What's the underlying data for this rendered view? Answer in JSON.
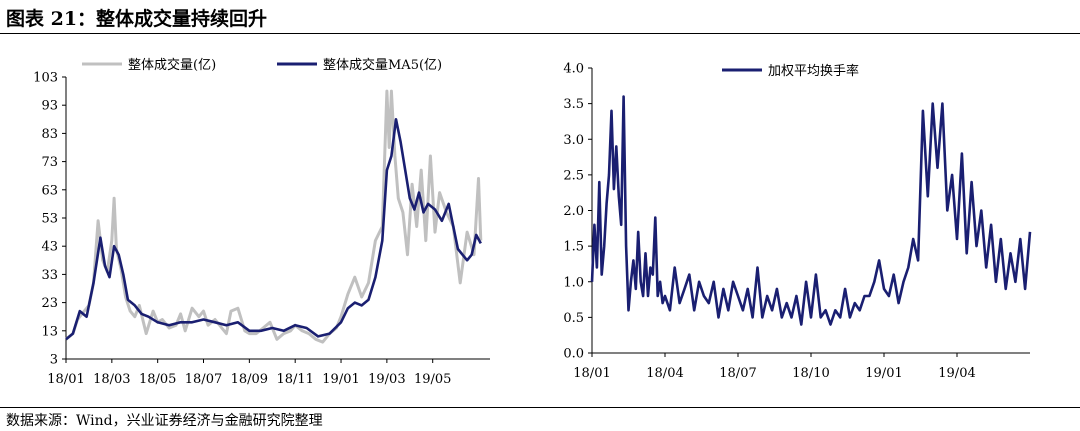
{
  "figure_title": "图表 21：整体成交量持续回升",
  "source": "数据来源：Wind，兴业证券经济与金融研究院整理",
  "chart_data": [
    {
      "type": "line",
      "yticks": [
        3,
        13,
        23,
        33,
        43,
        53,
        63,
        73,
        83,
        93,
        103
      ],
      "ylim": [
        3,
        103
      ],
      "x_tick_labels": [
        "18/01",
        "18/03",
        "18/05",
        "18/07",
        "18/09",
        "18/11",
        "19/01",
        "19/03",
        "19/05"
      ],
      "x_tick_positions": [
        0,
        2,
        4,
        6,
        8,
        10,
        12,
        14,
        16
      ],
      "xlim": [
        0,
        18.5
      ],
      "legend_position": "top",
      "series": [
        {
          "name": "整体成交量(亿)",
          "color": "#c0c0c0",
          "points": [
            [
              0,
              10
            ],
            [
              0.3,
              12
            ],
            [
              0.5,
              17
            ],
            [
              0.8,
              20
            ],
            [
              1,
              22
            ],
            [
              1.2,
              30
            ],
            [
              1.4,
              52
            ],
            [
              1.6,
              38
            ],
            [
              1.8,
              34
            ],
            [
              2,
              45
            ],
            [
              2.1,
              60
            ],
            [
              2.2,
              42
            ],
            [
              2.4,
              35
            ],
            [
              2.6,
              25
            ],
            [
              2.8,
              20
            ],
            [
              3,
              18
            ],
            [
              3.2,
              22
            ],
            [
              3.5,
              12
            ],
            [
              3.8,
              20
            ],
            [
              4,
              16
            ],
            [
              4.2,
              17
            ],
            [
              4.5,
              14
            ],
            [
              4.8,
              15
            ],
            [
              5,
              19
            ],
            [
              5.2,
              13
            ],
            [
              5.5,
              21
            ],
            [
              5.8,
              18
            ],
            [
              6,
              20
            ],
            [
              6.2,
              15
            ],
            [
              6.5,
              17
            ],
            [
              6.8,
              14
            ],
            [
              7,
              12
            ],
            [
              7.2,
              20
            ],
            [
              7.5,
              21
            ],
            [
              7.8,
              13
            ],
            [
              8,
              12
            ],
            [
              8.3,
              12
            ],
            [
              8.6,
              14
            ],
            [
              8.9,
              16
            ],
            [
              9.2,
              10
            ],
            [
              9.5,
              12
            ],
            [
              9.8,
              13
            ],
            [
              10,
              15
            ],
            [
              10.3,
              13
            ],
            [
              10.6,
              12
            ],
            [
              10.9,
              10
            ],
            [
              11.2,
              9
            ],
            [
              11.5,
              12
            ],
            [
              11.8,
              14
            ],
            [
              12,
              18
            ],
            [
              12.3,
              26
            ],
            [
              12.6,
              32
            ],
            [
              12.9,
              25
            ],
            [
              13.2,
              30
            ],
            [
              13.5,
              45
            ],
            [
              13.8,
              50
            ],
            [
              14,
              98
            ],
            [
              14.1,
              78
            ],
            [
              14.2,
              98
            ],
            [
              14.35,
              75
            ],
            [
              14.5,
              60
            ],
            [
              14.7,
              55
            ],
            [
              14.9,
              40
            ],
            [
              15.1,
              65
            ],
            [
              15.3,
              50
            ],
            [
              15.5,
              70
            ],
            [
              15.7,
              45
            ],
            [
              15.9,
              75
            ],
            [
              16.1,
              48
            ],
            [
              16.3,
              62
            ],
            [
              16.6,
              55
            ],
            [
              16.9,
              50
            ],
            [
              17.2,
              30
            ],
            [
              17.5,
              48
            ],
            [
              17.8,
              40
            ],
            [
              18,
              67
            ],
            [
              18.1,
              45
            ]
          ]
        },
        {
          "name": "整体成交量MA5(亿)",
          "color": "#1a1f71",
          "points": [
            [
              0,
              10
            ],
            [
              0.3,
              12
            ],
            [
              0.6,
              20
            ],
            [
              0.9,
              18
            ],
            [
              1.2,
              30
            ],
            [
              1.5,
              46
            ],
            [
              1.7,
              36
            ],
            [
              1.9,
              32
            ],
            [
              2.1,
              43
            ],
            [
              2.3,
              40
            ],
            [
              2.5,
              33
            ],
            [
              2.7,
              24
            ],
            [
              3,
              22
            ],
            [
              3.3,
              19
            ],
            [
              3.6,
              18
            ],
            [
              4,
              16
            ],
            [
              4.5,
              15
            ],
            [
              5,
              16
            ],
            [
              5.5,
              16
            ],
            [
              6,
              17
            ],
            [
              6.5,
              16
            ],
            [
              7,
              15
            ],
            [
              7.5,
              16
            ],
            [
              8,
              13
            ],
            [
              8.5,
              13
            ],
            [
              9,
              14
            ],
            [
              9.5,
              13
            ],
            [
              10,
              15
            ],
            [
              10.5,
              14
            ],
            [
              11,
              11
            ],
            [
              11.5,
              12
            ],
            [
              12,
              16
            ],
            [
              12.3,
              21
            ],
            [
              12.6,
              23
            ],
            [
              12.9,
              22
            ],
            [
              13.2,
              24
            ],
            [
              13.5,
              32
            ],
            [
              13.8,
              45
            ],
            [
              14,
              70
            ],
            [
              14.2,
              75
            ],
            [
              14.4,
              88
            ],
            [
              14.6,
              80
            ],
            [
              14.8,
              70
            ],
            [
              15,
              60
            ],
            [
              15.2,
              56
            ],
            [
              15.4,
              62
            ],
            [
              15.6,
              55
            ],
            [
              15.8,
              58
            ],
            [
              16.1,
              56
            ],
            [
              16.4,
              52
            ],
            [
              16.7,
              58
            ],
            [
              16.9,
              50
            ],
            [
              17.1,
              42
            ],
            [
              17.3,
              40
            ],
            [
              17.5,
              38
            ],
            [
              17.7,
              40
            ],
            [
              17.9,
              47
            ],
            [
              18.1,
              44
            ]
          ]
        }
      ]
    },
    {
      "type": "line",
      "yticks": [
        0.0,
        0.5,
        1.0,
        1.5,
        2.0,
        2.5,
        3.0,
        3.5,
        4.0
      ],
      "ytick_labels": [
        "0.0",
        "0.5",
        "1.0",
        "1.5",
        "2.0",
        "2.5",
        "3.0",
        "3.5",
        "4.0"
      ],
      "ylim": [
        0,
        4
      ],
      "x_tick_labels": [
        "18/01",
        "18/04",
        "18/07",
        "18/10",
        "19/01",
        "19/04"
      ],
      "x_tick_positions": [
        0,
        3,
        6,
        9,
        12,
        15
      ],
      "xlim": [
        0,
        18
      ],
      "legend_position": "top",
      "series": [
        {
          "name": "加权平均换手率",
          "color": "#1a1f71",
          "points": [
            [
              0,
              1.0
            ],
            [
              0.1,
              1.8
            ],
            [
              0.2,
              1.2
            ],
            [
              0.3,
              2.4
            ],
            [
              0.4,
              1.1
            ],
            [
              0.5,
              1.5
            ],
            [
              0.6,
              2.1
            ],
            [
              0.7,
              2.5
            ],
            [
              0.8,
              3.4
            ],
            [
              0.9,
              2.3
            ],
            [
              1.0,
              2.9
            ],
            [
              1.1,
              2.2
            ],
            [
              1.2,
              1.8
            ],
            [
              1.3,
              3.6
            ],
            [
              1.4,
              1.5
            ],
            [
              1.5,
              0.6
            ],
            [
              1.6,
              1.0
            ],
            [
              1.7,
              1.3
            ],
            [
              1.8,
              0.9
            ],
            [
              1.9,
              1.7
            ],
            [
              2.0,
              1.0
            ],
            [
              2.1,
              0.8
            ],
            [
              2.2,
              1.4
            ],
            [
              2.3,
              0.8
            ],
            [
              2.4,
              1.2
            ],
            [
              2.5,
              1.1
            ],
            [
              2.6,
              1.9
            ],
            [
              2.7,
              0.8
            ],
            [
              2.8,
              1.0
            ],
            [
              2.9,
              0.7
            ],
            [
              3.0,
              0.8
            ],
            [
              3.2,
              0.6
            ],
            [
              3.4,
              1.2
            ],
            [
              3.6,
              0.7
            ],
            [
              3.8,
              0.9
            ],
            [
              4.0,
              1.1
            ],
            [
              4.2,
              0.6
            ],
            [
              4.4,
              1.0
            ],
            [
              4.6,
              0.8
            ],
            [
              4.8,
              0.7
            ],
            [
              5.0,
              1.0
            ],
            [
              5.2,
              0.5
            ],
            [
              5.4,
              0.9
            ],
            [
              5.6,
              0.6
            ],
            [
              5.8,
              1.0
            ],
            [
              6.0,
              0.8
            ],
            [
              6.2,
              0.6
            ],
            [
              6.4,
              0.9
            ],
            [
              6.6,
              0.5
            ],
            [
              6.8,
              1.2
            ],
            [
              7.0,
              0.5
            ],
            [
              7.2,
              0.8
            ],
            [
              7.4,
              0.6
            ],
            [
              7.6,
              0.9
            ],
            [
              7.8,
              0.5
            ],
            [
              8.0,
              0.7
            ],
            [
              8.2,
              0.5
            ],
            [
              8.4,
              0.8
            ],
            [
              8.6,
              0.4
            ],
            [
              8.8,
              1.0
            ],
            [
              9.0,
              0.5
            ],
            [
              9.2,
              1.1
            ],
            [
              9.4,
              0.5
            ],
            [
              9.6,
              0.6
            ],
            [
              9.8,
              0.4
            ],
            [
              10.0,
              0.6
            ],
            [
              10.2,
              0.5
            ],
            [
              10.4,
              0.9
            ],
            [
              10.6,
              0.5
            ],
            [
              10.8,
              0.7
            ],
            [
              11.0,
              0.6
            ],
            [
              11.2,
              0.8
            ],
            [
              11.4,
              0.8
            ],
            [
              11.6,
              1.0
            ],
            [
              11.8,
              1.3
            ],
            [
              12.0,
              0.9
            ],
            [
              12.2,
              0.8
            ],
            [
              12.4,
              1.1
            ],
            [
              12.6,
              0.7
            ],
            [
              12.8,
              1.0
            ],
            [
              13.0,
              1.2
            ],
            [
              13.2,
              1.6
            ],
            [
              13.4,
              1.3
            ],
            [
              13.6,
              3.4
            ],
            [
              13.8,
              2.2
            ],
            [
              14.0,
              3.5
            ],
            [
              14.2,
              2.6
            ],
            [
              14.4,
              3.5
            ],
            [
              14.6,
              2.0
            ],
            [
              14.8,
              2.5
            ],
            [
              15.0,
              1.6
            ],
            [
              15.2,
              2.8
            ],
            [
              15.4,
              1.4
            ],
            [
              15.6,
              2.4
            ],
            [
              15.8,
              1.5
            ],
            [
              16.0,
              2.0
            ],
            [
              16.2,
              1.2
            ],
            [
              16.4,
              1.8
            ],
            [
              16.6,
              1.0
            ],
            [
              16.8,
              1.6
            ],
            [
              17.0,
              0.9
            ],
            [
              17.2,
              1.4
            ],
            [
              17.4,
              1.0
            ],
            [
              17.6,
              1.6
            ],
            [
              17.8,
              0.9
            ],
            [
              18.0,
              1.7
            ]
          ]
        }
      ]
    }
  ]
}
